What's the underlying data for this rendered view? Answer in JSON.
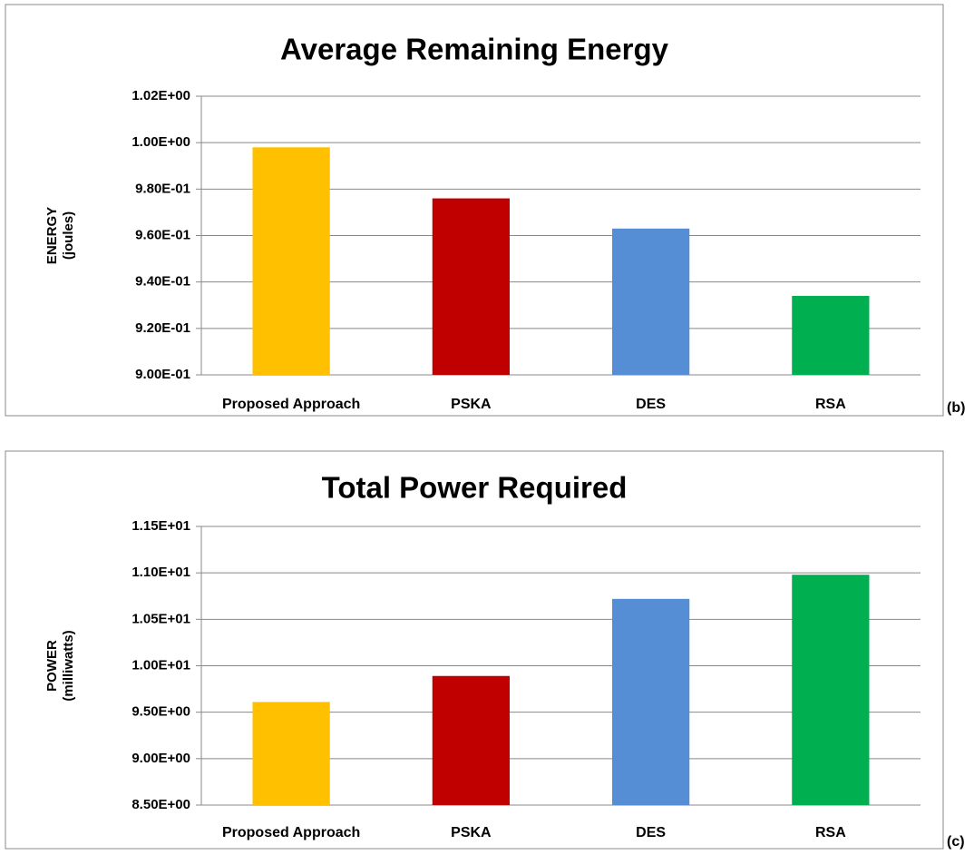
{
  "chart_data": [
    {
      "type": "bar",
      "title": "Average Remaining Energy",
      "ylabel": [
        "ENERGY",
        "(joules)"
      ],
      "panel_label": "(b)",
      "categories": [
        "Proposed Approach",
        "PSKA",
        "DES",
        "RSA"
      ],
      "values": [
        0.998,
        0.976,
        0.963,
        0.934
      ],
      "colors": [
        "#ffc000",
        "#c00000",
        "#558ed5",
        "#00b050"
      ],
      "ylim": [
        0.9,
        1.02
      ],
      "yticks": [
        {
          "value": 0.9,
          "label": "9.00E-01"
        },
        {
          "value": 0.92,
          "label": "9.20E-01"
        },
        {
          "value": 0.94,
          "label": "9.40E-01"
        },
        {
          "value": 0.96,
          "label": "9.60E-01"
        },
        {
          "value": 0.98,
          "label": "9.80E-01"
        },
        {
          "value": 1.0,
          "label": "1.00E+00"
        },
        {
          "value": 1.02,
          "label": "1.02E+00"
        }
      ],
      "grid": true
    },
    {
      "type": "bar",
      "title": "Total Power Required",
      "ylabel": [
        "POWER",
        "(milliwatts)"
      ],
      "panel_label": "(c)",
      "categories": [
        "Proposed Approach",
        "PSKA",
        "DES",
        "RSA"
      ],
      "values": [
        9.61,
        9.89,
        10.72,
        10.98
      ],
      "colors": [
        "#ffc000",
        "#c00000",
        "#558ed5",
        "#00b050"
      ],
      "ylim": [
        8.5,
        11.5
      ],
      "yticks": [
        {
          "value": 8.5,
          "label": "8.50E+00"
        },
        {
          "value": 9.0,
          "label": "9.00E+00"
        },
        {
          "value": 9.5,
          "label": "9.50E+00"
        },
        {
          "value": 10.0,
          "label": "1.00E+01"
        },
        {
          "value": 10.5,
          "label": "1.05E+01"
        },
        {
          "value": 11.0,
          "label": "1.10E+01"
        },
        {
          "value": 11.5,
          "label": "1.15E+01"
        }
      ],
      "grid": true
    }
  ]
}
